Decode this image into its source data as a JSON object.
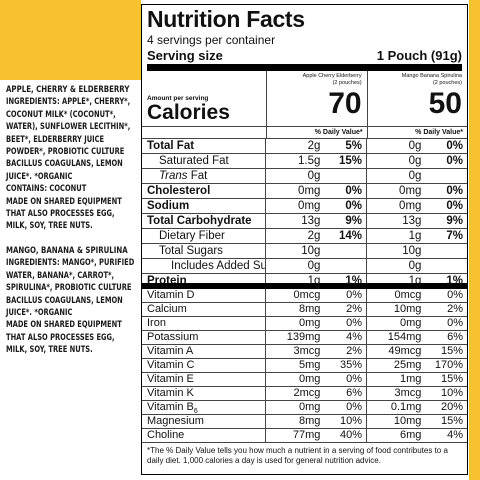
{
  "left_panel": {
    "sections": [
      {
        "heading": "APPLE, CHERRY & ELDERBERRY",
        "ingredients": "INGREDIENTS: APPLE*, CHERRY*, COCONUT MILK* (COCONUT*, WATER), SUNFLOWER LECITHIN*, BEET*, ELDERBERRY JUICE POWDER*, PROBIOTIC CULTURE BACILLUS COAGULANS, LEMON JUICE*. *ORGANIC",
        "contains": "CONTAINS: COCONUT",
        "note": "MADE ON SHARED EQUIPMENT THAT ALSO PROCESSES EGG, MILK, SOY, TREE NUTS."
      },
      {
        "heading": "MANGO, BANANA & SPIRULINA",
        "ingredients": "INGREDIENTS: MANGO*, PURIFIED WATER, BANANA*, CARROT*, SPIRULINA*, PROBIOTIC CULTURE BACILLUS COAGULANS, LEMON JUICE*. *ORGANIC",
        "note": "MADE ON SHARED EQUIPMENT THAT ALSO PROCESSES EGG, MILK, SOY, TREE NUTS."
      }
    ]
  },
  "label": {
    "title": "Nutrition Facts",
    "servings": "4 servings per container",
    "serving_size_label": "Serving size",
    "serving_size": "1 Pouch (91g)",
    "amount_per_serving": "Amount per serving",
    "calories_label": "Calories",
    "columns": [
      {
        "name": "Apple Cherry Elderberry",
        "sub": "(2 pouches)",
        "calories": "70"
      },
      {
        "name": "Mango Banana Spirulina",
        "sub": "(2 pouches)",
        "calories": "50"
      }
    ],
    "dv_header": "% Daily Value*",
    "nutrients": [
      {
        "label": "Total Fat",
        "amounts": [
          "2g",
          "0g"
        ],
        "dv": [
          "5%",
          "0%"
        ]
      },
      {
        "label": "Saturated Fat",
        "amounts": [
          "1.5g",
          "0g"
        ],
        "dv": [
          "15%",
          "0%"
        ]
      },
      {
        "label_italic": "Trans",
        "label": "Fat",
        "amounts": [
          "0g",
          "0g"
        ]
      },
      {
        "label": "Cholesterol",
        "amounts": [
          "0mg",
          "0mg"
        ],
        "dv": [
          "0%",
          "0%"
        ]
      },
      {
        "label": "Sodium",
        "amounts": [
          "0mg",
          "0mg"
        ],
        "dv": [
          "0%",
          "0%"
        ]
      },
      {
        "label": "Total Carbohydrate",
        "amounts": [
          "13g",
          "13g"
        ],
        "dv": [
          "9%",
          "9%"
        ]
      },
      {
        "label": "Dietary Fiber",
        "amounts": [
          "2g",
          "1g"
        ],
        "dv": [
          "14%",
          "7%"
        ]
      },
      {
        "label": "Total Sugars",
        "amounts": [
          "10g",
          "10g"
        ]
      },
      {
        "label": "Includes Added Sugars",
        "amounts": [
          "0g",
          "0g"
        ]
      },
      {
        "label": "Protein",
        "amounts": [
          "1g",
          "1g"
        ],
        "dv": [
          "1%",
          "1%"
        ]
      }
    ],
    "vitamins": [
      {
        "label": "Vitamin D",
        "amounts": [
          "0mcg",
          "0mcg"
        ],
        "dv": [
          "0%",
          "0%"
        ]
      },
      {
        "label": "Calcium",
        "amounts": [
          "8mg",
          "10mg"
        ],
        "dv": [
          "2%",
          "2%"
        ]
      },
      {
        "label": "Iron",
        "amounts": [
          "0mg",
          "0mg"
        ],
        "dv": [
          "0%",
          "0%"
        ]
      },
      {
        "label": "Potassium",
        "amounts": [
          "139mg",
          "154mg"
        ],
        "dv": [
          "4%",
          "6%"
        ]
      },
      {
        "label": "Vitamin A",
        "amounts": [
          "3mcg",
          "49mcg"
        ],
        "dv": [
          "2%",
          "15%"
        ]
      },
      {
        "label": "Vitamin C",
        "amounts": [
          "5mg",
          "25mg"
        ],
        "dv": [
          "35%",
          "170%"
        ]
      },
      {
        "label": "Vitamin E",
        "amounts": [
          "0mg",
          "1mg"
        ],
        "dv": [
          "0%",
          "15%"
        ]
      },
      {
        "label": "Vitamin K",
        "amounts": [
          "2mcg",
          "3mcg"
        ],
        "dv": [
          "6%",
          "10%"
        ]
      },
      {
        "label": "Vitamin B",
        "label_sub": "6",
        "amounts": [
          "0mg",
          "0.1mg"
        ],
        "dv": [
          "0%",
          "20%"
        ]
      },
      {
        "label": "Magnesium",
        "amounts": [
          "8mg",
          "10mg"
        ],
        "dv": [
          "10%",
          "15%"
        ]
      },
      {
        "label": "Choline",
        "amounts": [
          "77mg",
          "6mg"
        ],
        "dv": [
          "40%",
          "4%"
        ]
      }
    ],
    "footnote": "*The % Daily Value tells you how much a nutrient in a serving of food contributes to a daily diet. 1,000 calories a day is used for general nutrition advice."
  }
}
